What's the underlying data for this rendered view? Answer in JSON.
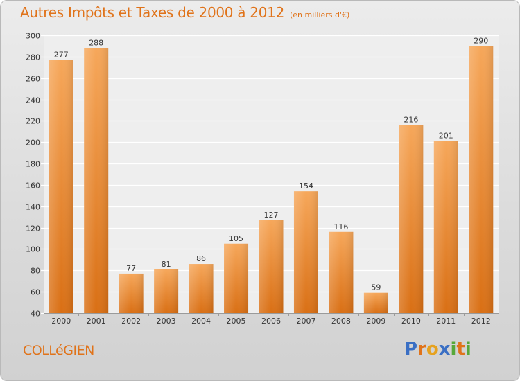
{
  "header": {
    "title": "Autres Impôts et Taxes de 2000 à 2012",
    "unit": "(en milliers d'€)"
  },
  "footer": {
    "commune": "COLLéGIEN",
    "logo_letters": [
      {
        "char": "P",
        "color": "#3a6fc4"
      },
      {
        "char": "r",
        "color": "#e0731a"
      },
      {
        "char": "o",
        "color": "#e6a21f"
      },
      {
        "char": "x",
        "color": "#3a6fc4"
      },
      {
        "char": "i",
        "color": "#57a83a"
      },
      {
        "char": "t",
        "color": "#e0731a"
      },
      {
        "char": "i",
        "color": "#57a83a"
      }
    ]
  },
  "colors": {
    "accent": "#e0731a",
    "bar_light": "#f6a75a",
    "bar_dark": "#d96f14"
  },
  "chart_data": {
    "type": "bar",
    "title": "Autres Impôts et Taxes de 2000 à 2012",
    "subtitle": "(en milliers d'€)",
    "categories": [
      "2000",
      "2001",
      "2002",
      "2003",
      "2004",
      "2005",
      "2006",
      "2007",
      "2008",
      "2009",
      "2010",
      "2011",
      "2012"
    ],
    "values": [
      277,
      288,
      77,
      81,
      86,
      105,
      127,
      154,
      116,
      59,
      216,
      201,
      290
    ],
    "ylim": [
      40,
      300
    ],
    "yticks": [
      40,
      60,
      80,
      100,
      120,
      140,
      160,
      180,
      200,
      220,
      240,
      260,
      280,
      300
    ],
    "grid": true,
    "data_labels": true
  }
}
